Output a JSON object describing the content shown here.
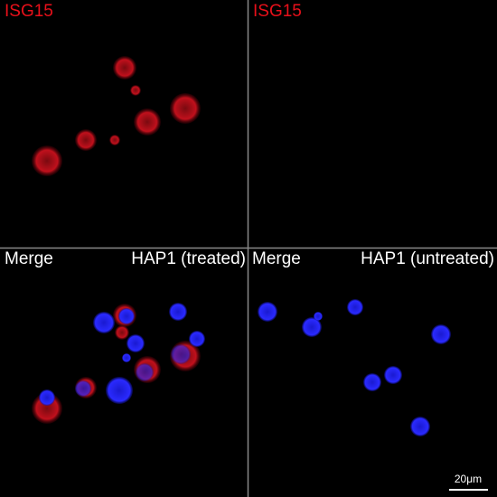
{
  "panels": [
    {
      "label": "ISG15"
    },
    {
      "label": "ISG15"
    },
    {
      "label": "Merge",
      "sample": "HAP1 (treated)"
    },
    {
      "label": "Merge",
      "sample": "HAP1 (untreated)"
    }
  ],
  "scale_bar": "20μm"
}
